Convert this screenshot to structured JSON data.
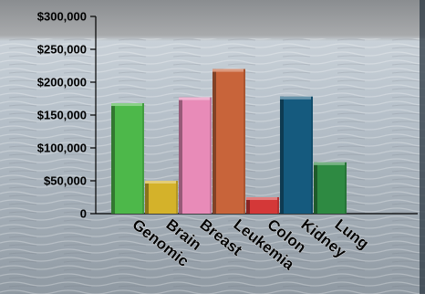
{
  "chart_data": {
    "type": "bar",
    "title": "",
    "xlabel": "",
    "ylabel": "",
    "categories": [
      "Genomic",
      "Brain",
      "Breast",
      "Leukemia",
      "Colon",
      "Kidney",
      "Lung"
    ],
    "values": [
      168000,
      50000,
      177000,
      220000,
      25000,
      178000,
      78000
    ],
    "ylim": [
      0,
      300000
    ],
    "yticks": [
      0,
      50000,
      100000,
      150000,
      200000,
      250000,
      300000
    ],
    "ytick_labels": [
      "0",
      "$50,000",
      "$100,000",
      "$150,000",
      "$200,000",
      "$250,000",
      "$300,000"
    ],
    "colors": [
      "#4db84a",
      "#d4b22a",
      "#e88bb8",
      "#c8643a",
      "#d43838",
      "#155a7e",
      "#2e8a42"
    ],
    "grid": false,
    "legend": "none"
  }
}
